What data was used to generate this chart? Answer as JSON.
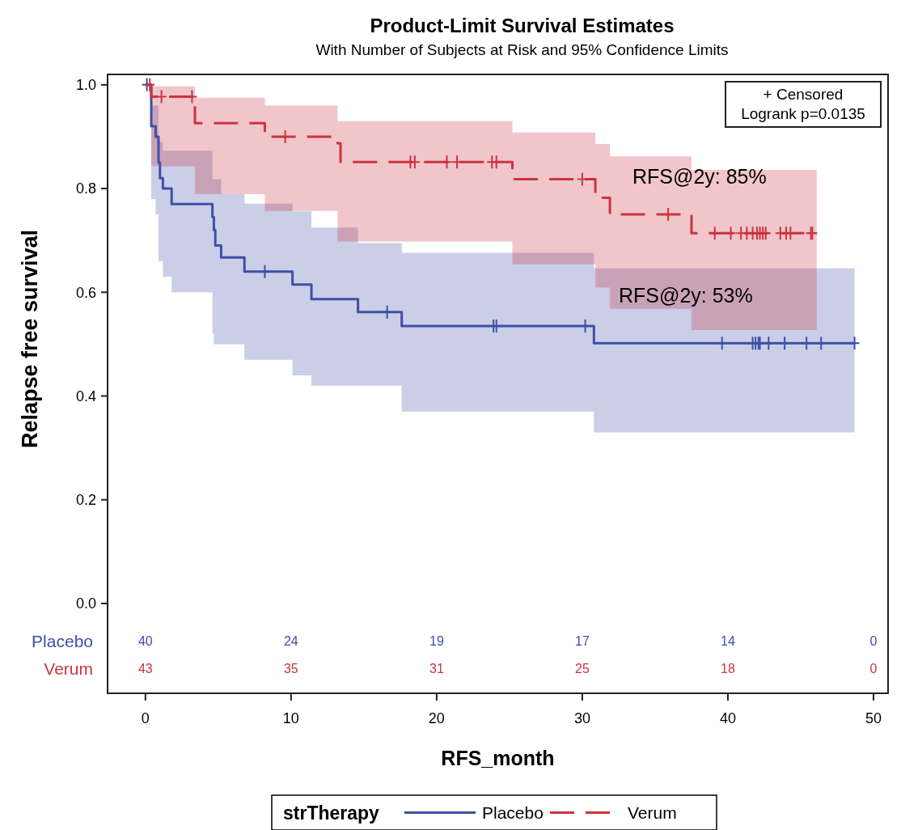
{
  "chart_data": [
    {
      "type": "step",
      "title": "Product-Limit Survival Estimates",
      "subtitle": "With Number of Subjects at Risk and 95% Confidence Limits",
      "xlabel": "RFS_month",
      "ylabel": "Relapse free survival",
      "legend_title": "strTherapy",
      "legend": "bottom",
      "xlim": [
        -2.6,
        51
      ],
      "xticks": [
        0,
        10,
        20,
        30,
        40,
        50
      ],
      "ylim": [
        0,
        1.02
      ],
      "yticks": [
        {
          "value": 0,
          "label": "0.0"
        },
        0.2,
        0.4,
        0.6,
        0.8,
        {
          "value": 1,
          "label": "1.0"
        }
      ],
      "grid": false,
      "tick_labels": "y",
      "annotations": [
        "+ Censored",
        "Logrank p=0.0135",
        "RFS@2y: 85%",
        "RFS@2y: 53%"
      ],
      "series": [
        {
          "name": "Placebo",
          "type": "step",
          "color": "#3f4fa8",
          "line_style": "solid",
          "x": [
            0,
            0.4,
            0.7,
            0.9,
            1.0,
            1.2,
            1.8,
            4.6,
            4.7,
            4.8,
            5.2,
            6.8,
            10.1,
            11.4,
            14.6,
            17.6,
            30.8,
            48.7
          ],
          "values": [
            1,
            0.92,
            0.9,
            0.85,
            0.82,
            0.8,
            0.77,
            0.745,
            0.72,
            0.69,
            0.667,
            0.64,
            0.615,
            0.587,
            0.562,
            0.535,
            0.502,
            0.502
          ],
          "upper": [
            1,
            0.96,
            0.96,
            0.89,
            0.89,
            0.873,
            0.873,
            0.818,
            0.818,
            0.818,
            0.789,
            0.771,
            0.756,
            0.725,
            0.695,
            0.676,
            0.646,
            0.646
          ],
          "lower": [
            1,
            0.78,
            0.75,
            0.66,
            0.66,
            0.63,
            0.6,
            0.52,
            0.5,
            0.5,
            0.5,
            0.47,
            0.44,
            0.42,
            0.42,
            0.37,
            0.33,
            0.33
          ]
        },
        {
          "name": "Verum",
          "type": "step",
          "color": "#cc3340",
          "line_style": "dashed",
          "x": [
            0,
            0.4,
            3.4,
            8.2,
            13.2,
            13.4,
            25.2,
            30.9,
            31.9,
            37.5,
            46.1
          ],
          "values": [
            1,
            0.977,
            0.926,
            0.9,
            0.887,
            0.851,
            0.818,
            0.782,
            0.75,
            0.714,
            0.714
          ],
          "upper": [
            1,
            0.997,
            0.975,
            0.96,
            0.93,
            0.93,
            0.908,
            0.886,
            0.862,
            0.836,
            0.836
          ],
          "lower": [
            1,
            0.843,
            0.789,
            0.757,
            0.698,
            0.698,
            0.654,
            0.609,
            0.568,
            0.527,
            0.527
          ]
        },
        {
          "type": "scatter",
          "marker": "cross",
          "color": "#3f4fa8",
          "x": [
            0.1,
            8.2,
            16.6,
            23.9,
            24.1,
            30.2,
            39.6,
            41.7,
            41.9,
            42.1,
            42.2,
            42.8,
            43.9,
            45.4,
            46.4,
            48.7
          ],
          "values": [
            1,
            0.64,
            0.562,
            0.535,
            0.535,
            0.535,
            0.502,
            0.502,
            0.502,
            0.502,
            0.502,
            0.502,
            0.502,
            0.502,
            0.502,
            0.502
          ]
        },
        {
          "type": "scatter",
          "marker": "cross",
          "color": "#cc3340",
          "x": [
            0.3,
            1.1,
            3.2,
            9.6,
            18.2,
            18.5,
            20.7,
            21.4,
            23.8,
            24.1,
            30.0,
            35.9,
            39.1,
            40.2,
            40.9,
            41.3,
            41.7,
            42.0,
            42.2,
            42.4,
            42.6,
            43.6,
            44.0,
            44.3,
            45.7,
            45.8
          ],
          "values": [
            1,
            0.977,
            0.977,
            0.9,
            0.851,
            0.851,
            0.851,
            0.851,
            0.851,
            0.851,
            0.818,
            0.75,
            0.714,
            0.714,
            0.714,
            0.714,
            0.714,
            0.714,
            0.714,
            0.714,
            0.714,
            0.714,
            0.714,
            0.714,
            0.714,
            0.714
          ]
        }
      ]
    },
    {
      "type": "heatmap",
      "categories": [
        "0",
        "10",
        "20",
        "30",
        "40",
        "50"
      ],
      "data_labels": true,
      "y_categories": [
        "Placebo",
        "Verum"
      ],
      "colors": [
        "#3f4fa8",
        "#cc3340"
      ],
      "cells": [
        [
          40,
          24,
          19,
          17,
          14,
          0
        ],
        [
          43,
          35,
          31,
          25,
          18,
          0
        ]
      ]
    }
  ]
}
